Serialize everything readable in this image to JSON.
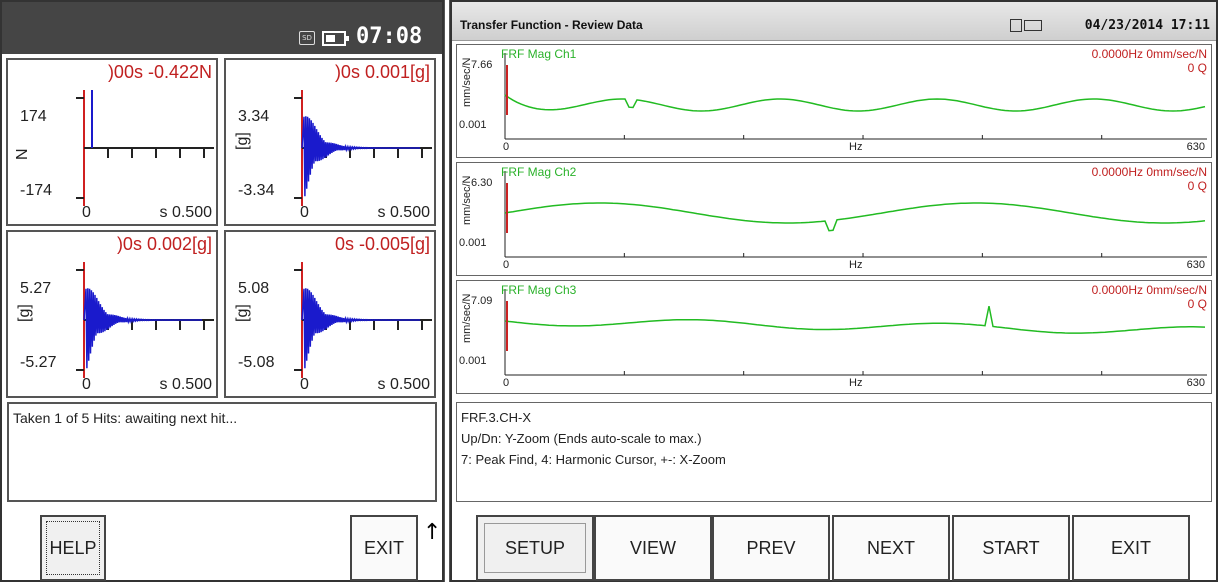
{
  "left": {
    "status_bar": {
      "sd_label": "SD",
      "clock": "07:08"
    },
    "plots": [
      {
        "readout": ")00s  -0.422N",
        "ymax": "174",
        "ymin": "-174",
        "unit": "N",
        "x0": "0",
        "xend": "s 0.500",
        "trace": "spike"
      },
      {
        "readout": ")0s  0.001[g]",
        "ymax": "3.34",
        "ymin": "-3.34",
        "unit": "[g]",
        "x0": "0",
        "xend": "s 0.500",
        "trace": "decay"
      },
      {
        "readout": ")0s  0.002[g]",
        "ymax": "5.27",
        "ymin": "-5.27",
        "unit": "[g]",
        "x0": "0",
        "xend": "s 0.500",
        "trace": "decay"
      },
      {
        "readout": "0s  -0.005[g]",
        "ymax": "5.08",
        "ymin": "-5.08",
        "unit": "[g]",
        "x0": "0",
        "xend": "s 0.500",
        "trace": "decay"
      }
    ],
    "message": "Taken 1 of 5 Hits: awaiting next hit...",
    "buttons": {
      "help": "HELP",
      "exit": "EXIT"
    }
  },
  "right": {
    "title": "Transfer Function - Review Data",
    "datetime": "04/23/2014 17:11",
    "channels": [
      {
        "label": "FRF Mag Ch1",
        "readout_line1": "0.0000Hz  0mm/sec/N",
        "readout_line2": "0 Q",
        "ymax": "7.66",
        "ymin": "0.001",
        "yunit": "mm/sec/N",
        "x0": "0",
        "xunit": "Hz",
        "xend": "630"
      },
      {
        "label": "FRF Mag Ch2",
        "readout_line1": "0.0000Hz  0mm/sec/N",
        "readout_line2": "0 Q",
        "ymax": "6.30",
        "ymin": "0.001",
        "yunit": "mm/sec/N",
        "x0": "0",
        "xunit": "Hz",
        "xend": "630"
      },
      {
        "label": "FRF Mag Ch3",
        "readout_line1": "0.0000Hz  0mm/sec/N",
        "readout_line2": "0 Q",
        "ymax": "7.09",
        "ymin": "0.001",
        "yunit": "mm/sec/N",
        "x0": "0",
        "xunit": "Hz",
        "xend": "630"
      }
    ],
    "info": {
      "line1": "FRF.3.CH-X",
      "line2": "Up/Dn: Y-Zoom (Ends auto-scale to max.)",
      "line3": "7: Peak Find, 4: Harmonic Cursor, +-: X-Zoom"
    },
    "buttons": {
      "setup": "SETUP",
      "view": "VIEW",
      "prev": "PREV",
      "next": "NEXT",
      "start": "START",
      "exit": "EXIT"
    }
  },
  "colors": {
    "trace_blue": "#1a1acc",
    "axis_red": "#d02020",
    "frf_green": "#22bb22",
    "frf_red": "#cc2222"
  }
}
